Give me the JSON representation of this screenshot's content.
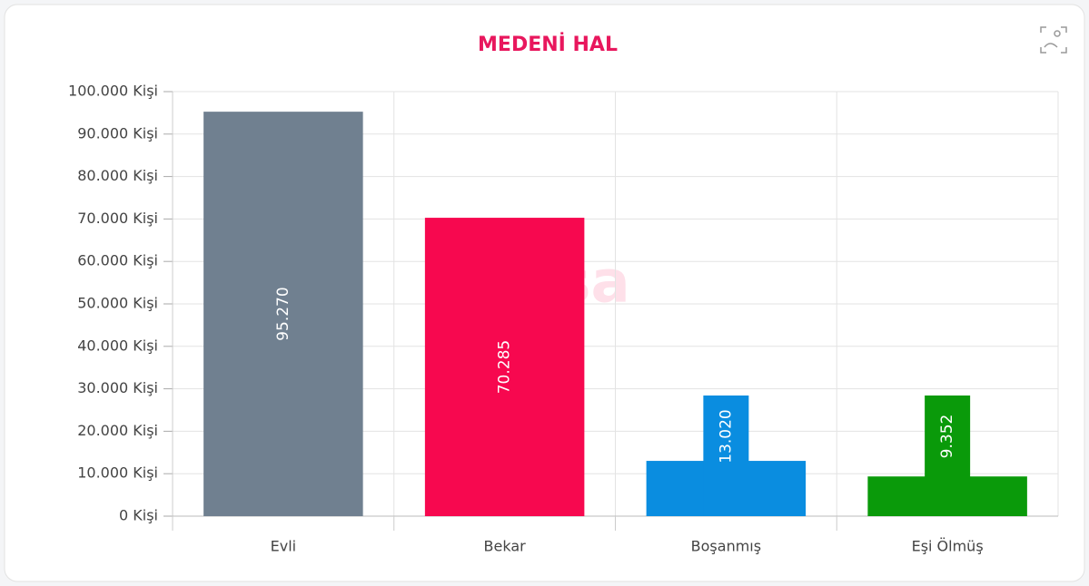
{
  "chart_data": {
    "type": "bar",
    "title": "MEDENİ HAL",
    "watermark": "eksa",
    "categories": [
      "Evli",
      "Bekar",
      "Boşanmış",
      "Eşi Ölmüş"
    ],
    "values": [
      95270,
      70285,
      13020,
      9352
    ],
    "value_labels": [
      "95.270",
      "70.285",
      "13.020",
      "9.352"
    ],
    "colors": [
      "#708090",
      "#f7084f",
      "#0a8de0",
      "#0a9a0a"
    ],
    "ylim": [
      0,
      100000
    ],
    "yticks": [
      {
        "value": 0,
        "label": "0 Kişi"
      },
      {
        "value": 10000,
        "label": "10.000 Kişi"
      },
      {
        "value": 20000,
        "label": "20.000 Kişi"
      },
      {
        "value": 30000,
        "label": "30.000 Kişi"
      },
      {
        "value": 40000,
        "label": "40.000 Kişi"
      },
      {
        "value": 50000,
        "label": "50.000 Kişi"
      },
      {
        "value": 60000,
        "label": "60.000 Kişi"
      },
      {
        "value": 70000,
        "label": "70.000 Kişi"
      },
      {
        "value": 80000,
        "label": "80.000 Kişi"
      },
      {
        "value": 90000,
        "label": "90.000 Kişi"
      },
      {
        "value": 100000,
        "label": "100.000 Kişi"
      }
    ],
    "grid": true
  }
}
